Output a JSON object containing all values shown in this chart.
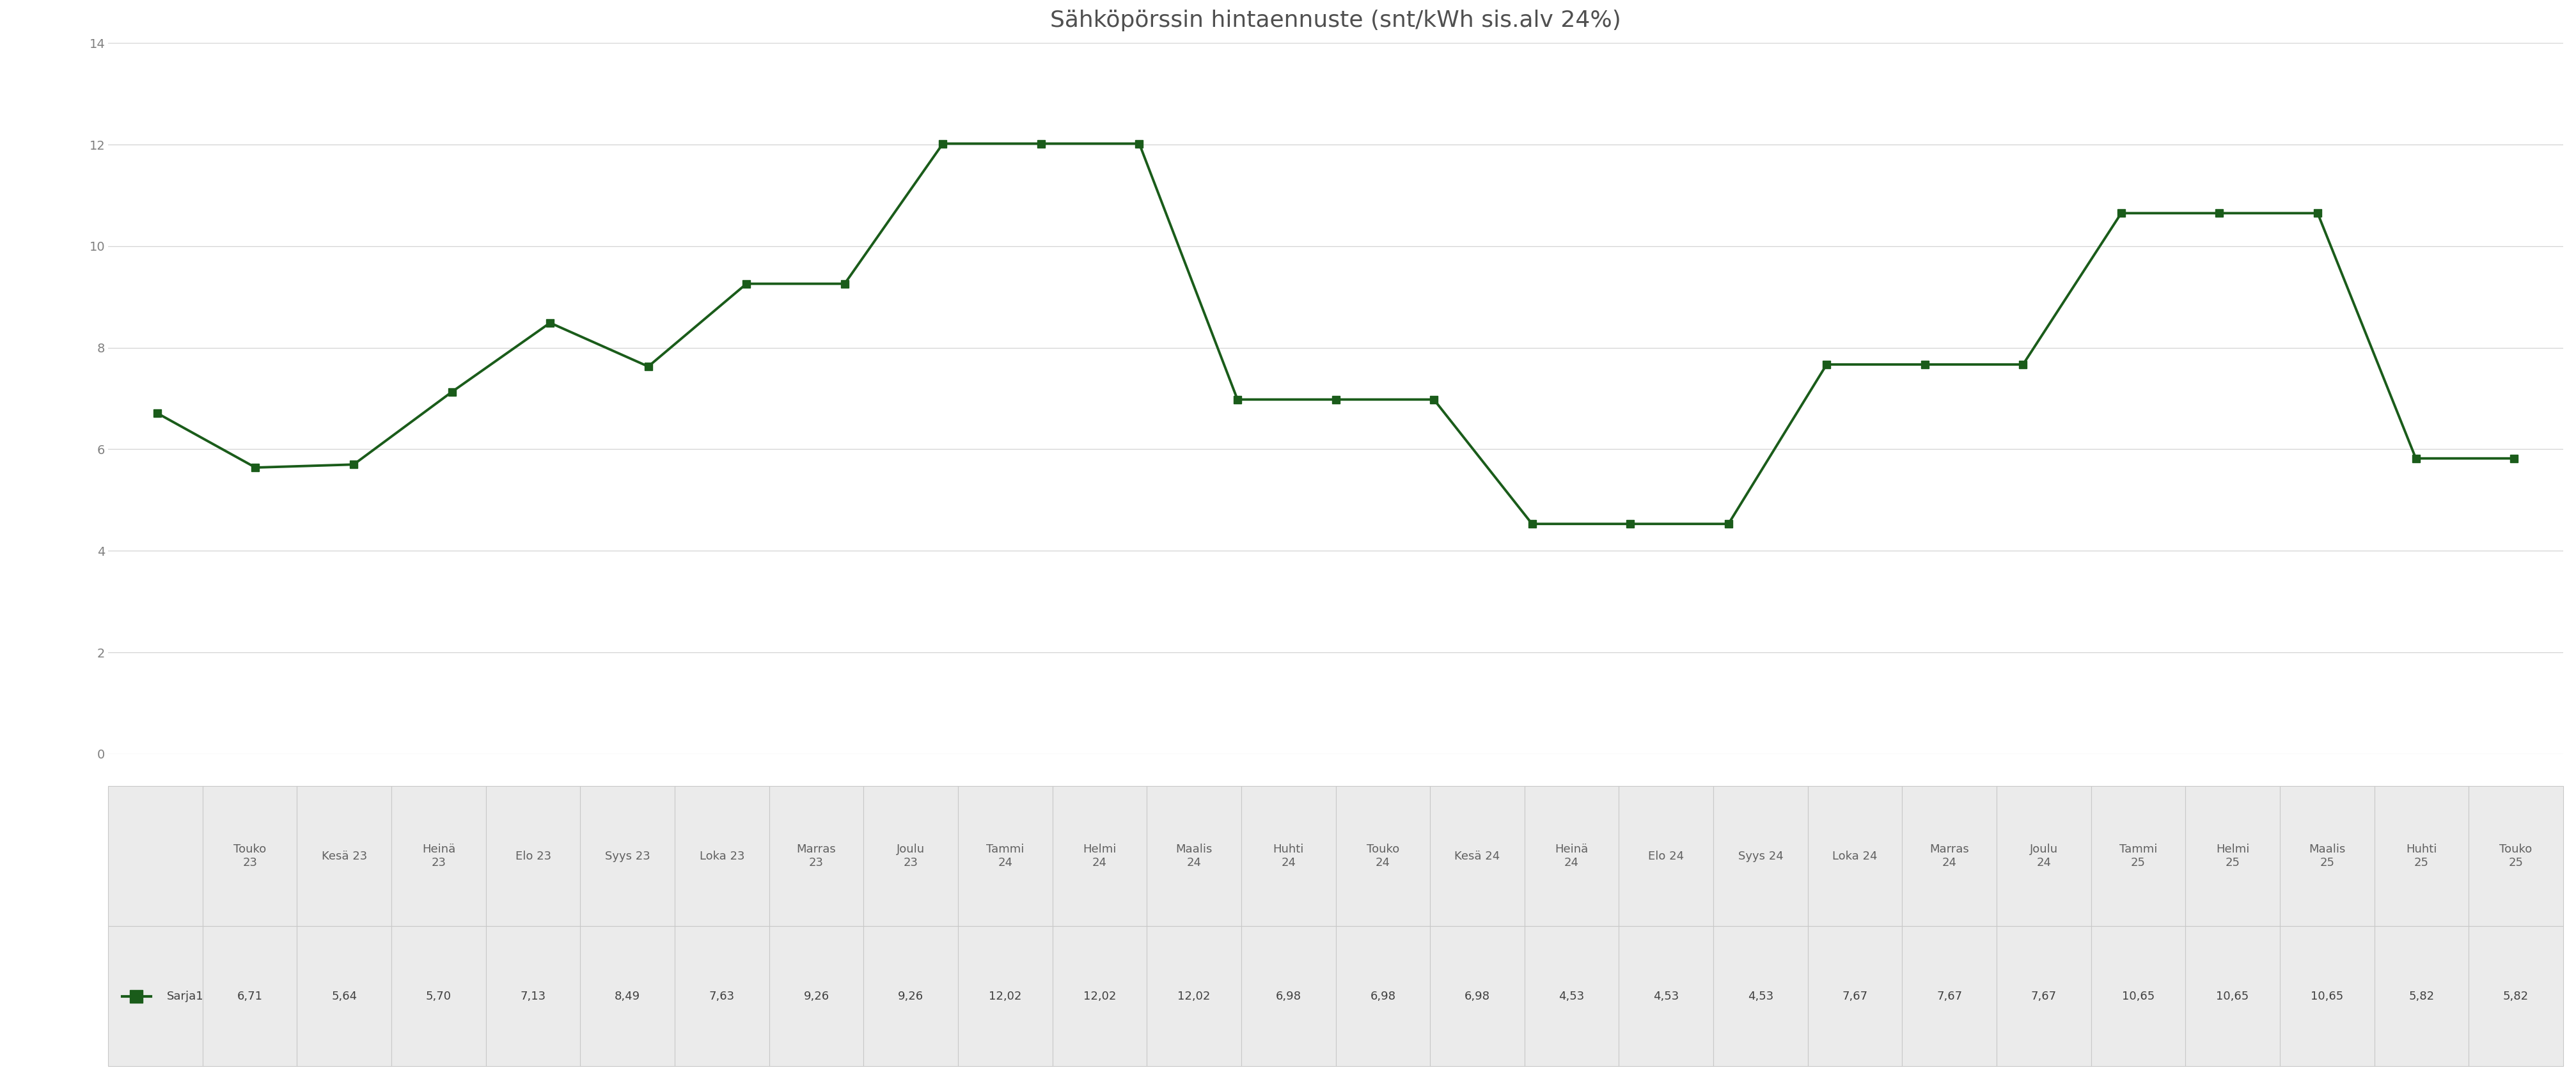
{
  "title": "Sähköpörssin hintaennuste (snt/kWh sis.alv 24%)",
  "categories": [
    "Touko\n23",
    "Kesä 23",
    "Heinä\n23",
    "Elo 23",
    "Syys 23",
    "Loka 23",
    "Marras\n23",
    "Joulu\n23",
    "Tammi\n24",
    "Helmi\n24",
    "Maalis\n24",
    "Huhti\n24",
    "Touko\n24",
    "Kesä 24",
    "Heinä\n24",
    "Elo 24",
    "Syys 24",
    "Loka 24",
    "Marras\n24",
    "Joulu\n24",
    "Tammi\n25",
    "Helmi\n25",
    "Maalis\n25",
    "Huhti\n25",
    "Touko\n25"
  ],
  "values": [
    6.71,
    5.64,
    5.7,
    7.13,
    8.49,
    7.63,
    9.26,
    9.26,
    12.02,
    12.02,
    12.02,
    6.98,
    6.98,
    6.98,
    4.53,
    4.53,
    4.53,
    7.67,
    7.67,
    7.67,
    10.65,
    10.65,
    10.65,
    5.82,
    5.82
  ],
  "legend_label": "Sarja1",
  "line_color": "#1a5c1a",
  "marker": "s",
  "marker_size": 8,
  "ylim": [
    0,
    14
  ],
  "yticks": [
    0,
    2,
    4,
    6,
    8,
    10,
    12,
    14
  ],
  "background_color": "#ffffff",
  "grid_color": "#d3d3d3",
  "title_fontsize": 26,
  "tick_fontsize": 14,
  "table_values": [
    "6,71",
    "5,64",
    "5,70",
    "7,13",
    "8,49",
    "7,63",
    "9,26",
    "9,26",
    "12,02",
    "12,02",
    "12,02",
    "6,98",
    "6,98",
    "6,98",
    "4,53",
    "4,53",
    "4,53",
    "7,67",
    "7,67",
    "7,67",
    "10,65",
    "10,65",
    "10,65",
    "5,82",
    "5,82"
  ],
  "table_cell_color": "#ebebeb",
  "table_edge_color": "#c8c8c8",
  "table_text_color": "#404040",
  "table_fontsize": 13,
  "ytick_color": "#808080",
  "xtick_color": "#606060"
}
